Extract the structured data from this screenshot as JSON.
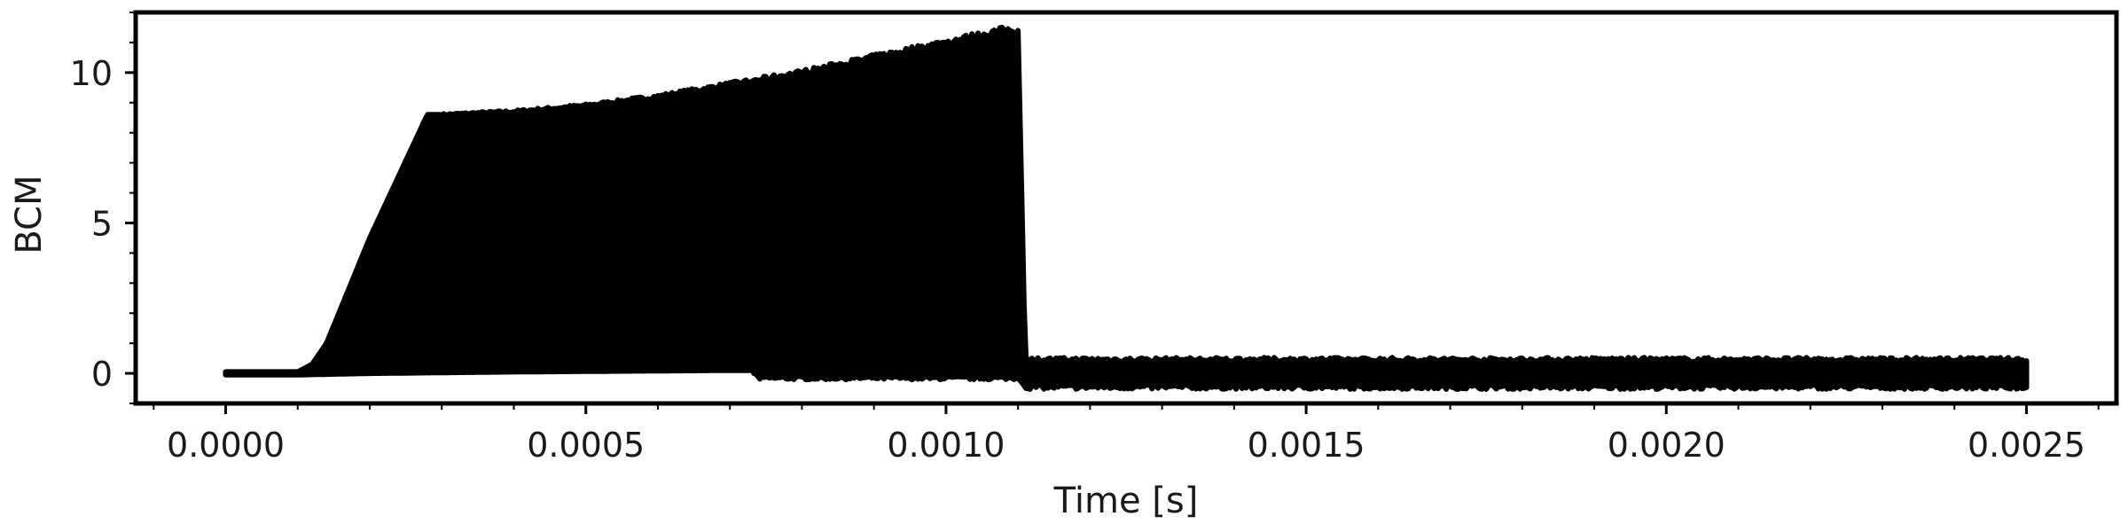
{
  "chart_data": {
    "type": "area",
    "title": "",
    "xlabel": "Time [s]",
    "ylabel": "BCM",
    "xlim": [
      -0.000125,
      0.002625
    ],
    "ylim": [
      -1.0,
      12.0
    ],
    "x_ticks": [
      0.0,
      0.0005,
      0.001,
      0.0015,
      0.002,
      0.0025
    ],
    "x_tick_labels": [
      "0.0000",
      "0.0005",
      "0.0010",
      "0.0015",
      "0.0020",
      "0.0025"
    ],
    "y_ticks": [
      0,
      5,
      10
    ],
    "y_tick_labels": [
      "0",
      "5",
      "10"
    ],
    "grid": false,
    "legend": false,
    "series": [
      {
        "color": "#000000",
        "upper_envelope": {
          "x": [
            0.0,
            0.0001,
            0.00012,
            0.00014,
            0.0002,
            0.00028,
            0.0003,
            0.0004,
            0.0005,
            0.0006,
            0.0007,
            0.0008,
            0.0009,
            0.001,
            0.00108,
            0.0011,
            0.00111,
            0.0015,
            0.002,
            0.0025
          ],
          "y": [
            0.05,
            0.05,
            0.3,
            1.0,
            4.5,
            8.6,
            8.6,
            8.7,
            8.9,
            9.2,
            9.6,
            10.0,
            10.5,
            11.0,
            11.4,
            11.4,
            0.45,
            0.45,
            0.45,
            0.45
          ]
        },
        "lower_envelope": {
          "x": [
            0.0,
            0.0001,
            0.0002,
            0.0004,
            0.0007,
            0.00073,
            0.00074,
            0.0009,
            0.0011,
            0.00111,
            0.0015,
            0.002,
            0.0025
          ],
          "y": [
            -0.05,
            -0.05,
            0.0,
            0.05,
            0.1,
            0.1,
            -0.15,
            -0.15,
            -0.15,
            -0.45,
            -0.45,
            -0.45,
            -0.45
          ]
        }
      }
    ]
  }
}
